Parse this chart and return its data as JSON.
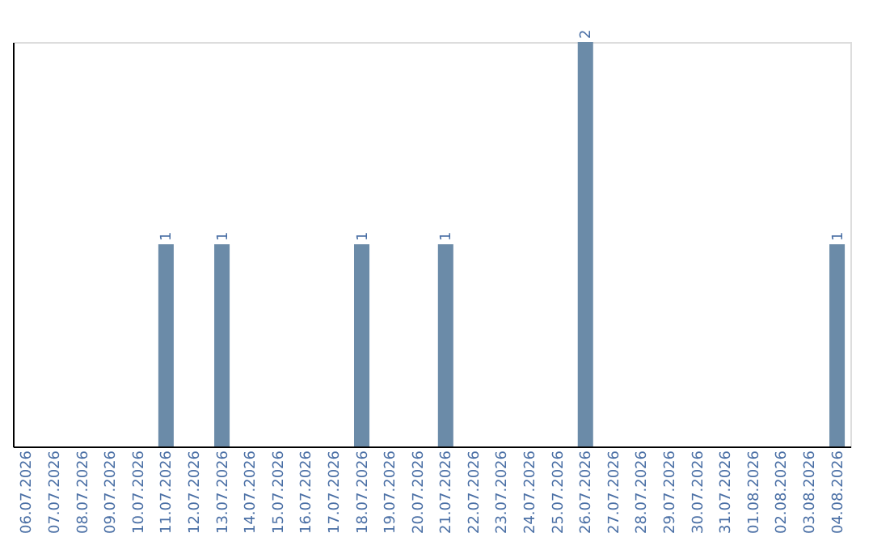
{
  "chart_data": {
    "type": "bar",
    "categories": [
      "06.07.2026",
      "07.07.2026",
      "08.07.2026",
      "09.07.2026",
      "10.07.2026",
      "11.07.2026",
      "12.07.2026",
      "13.07.2026",
      "14.07.2026",
      "15.07.2026",
      "16.07.2026",
      "17.07.2026",
      "18.07.2026",
      "19.07.2026",
      "20.07.2026",
      "21.07.2026",
      "22.07.2026",
      "23.07.2026",
      "24.07.2026",
      "25.07.2026",
      "26.07.2026",
      "27.07.2026",
      "28.07.2026",
      "29.07.2026",
      "30.07.2026",
      "31.07.2026",
      "01.08.2026",
      "02.08.2026",
      "03.08.2026",
      "04.08.2026"
    ],
    "values": [
      0,
      0,
      0,
      0,
      0,
      1,
      0,
      1,
      0,
      0,
      0,
      0,
      1,
      0,
      0,
      1,
      0,
      0,
      0,
      0,
      2,
      0,
      0,
      0,
      0,
      0,
      0,
      0,
      0,
      1
    ],
    "value_labels": [
      null,
      null,
      null,
      null,
      null,
      "1",
      null,
      "1",
      null,
      null,
      null,
      null,
      "1",
      null,
      null,
      "1",
      null,
      null,
      null,
      null,
      "2",
      null,
      null,
      null,
      null,
      null,
      null,
      null,
      null,
      "1"
    ],
    "color": "#6b8ba8",
    "grid": false
  }
}
